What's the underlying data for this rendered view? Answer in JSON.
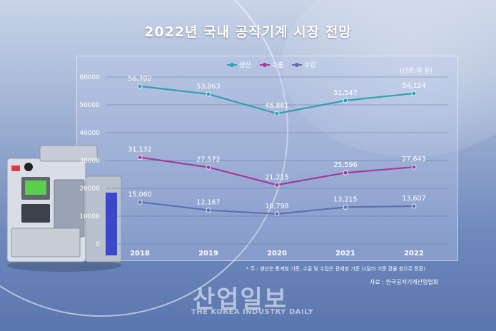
{
  "title": "2022년 국내 공작기계 시장 전망",
  "unit_label": "(단위:억 원)",
  "note": "* 주 : 생산은 통계청 기준, 수출 및 수입은 관세청 기준 (1달러 기준 환율 원으로 전환)",
  "source": "자료 : 한국공작기계산업협회",
  "logo": {
    "korean": "산업일보",
    "english": "THE KOREA INDUSTRY DAILY"
  },
  "chart_data": {
    "type": "line",
    "title": "2022년 국내 공작기계 시장 전망",
    "xlabel": "",
    "ylabel": "",
    "categories": [
      "2018",
      "2019",
      "2020",
      "2021",
      "2022"
    ],
    "ylim": [
      0,
      60000
    ],
    "yticks": [
      0,
      10000,
      20000,
      30000,
      40000,
      50000,
      60000
    ],
    "grid": true,
    "legend_position": "top",
    "series": [
      {
        "name": "생산",
        "color": "#2f9fb0",
        "values": [
          56702,
          53863,
          46861,
          51547,
          54124
        ],
        "labels": [
          "56,702",
          "53,863",
          "46,861",
          "51,547",
          "54,124"
        ]
      },
      {
        "name": "수출",
        "color": "#a13a9a",
        "values": [
          31132,
          27572,
          21215,
          25596,
          27643
        ],
        "labels": [
          "31,132",
          "27,572",
          "21,215",
          "25,596",
          "27,643"
        ]
      },
      {
        "name": "수입",
        "color": "#5d6fb1",
        "values": [
          15060,
          12167,
          10798,
          13215,
          13607
        ],
        "labels": [
          "15,060",
          "12,167",
          "10,798",
          "13,215",
          "13,607"
        ]
      }
    ]
  }
}
